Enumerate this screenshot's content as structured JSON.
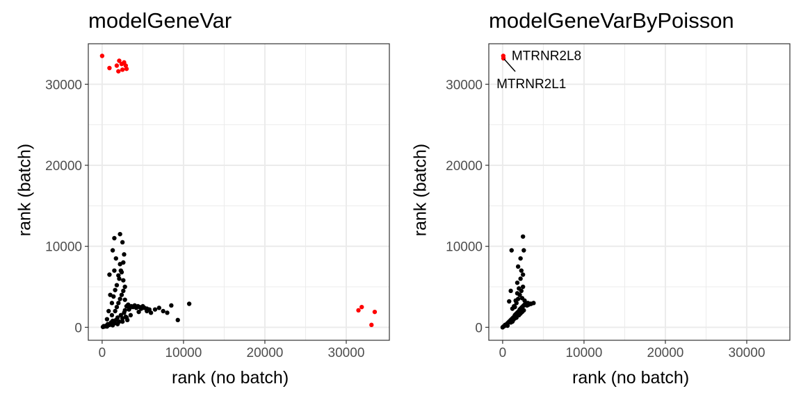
{
  "chart_data": [
    {
      "type": "scatter",
      "title": "modelGeneVar",
      "xlabel": "rank (no batch)",
      "ylabel": "rank (batch)",
      "xlim": [
        -1700,
        35300
      ],
      "ylim": [
        -1600,
        35000
      ],
      "xticks": [
        0,
        10000,
        20000,
        30000
      ],
      "yticks": [
        0,
        10000,
        20000,
        30000
      ],
      "grid": true,
      "series": [
        {
          "color": "#000000",
          "points": [
            [
              100,
              50
            ],
            [
              200,
              150
            ],
            [
              300,
              100
            ],
            [
              500,
              200
            ],
            [
              700,
              400
            ],
            [
              900,
              300
            ],
            [
              1100,
              600
            ],
            [
              1300,
              800
            ],
            [
              1500,
              500
            ],
            [
              1700,
              900
            ],
            [
              1900,
              1200
            ],
            [
              2100,
              700
            ],
            [
              2300,
              1500
            ],
            [
              2500,
              1100
            ],
            [
              2700,
              1800
            ],
            [
              2900,
              1300
            ],
            [
              3100,
              900
            ],
            [
              3300,
              2200
            ],
            [
              1200,
              1500
            ],
            [
              1600,
              2000
            ],
            [
              1800,
              2500
            ],
            [
              2000,
              3000
            ],
            [
              2200,
              3500
            ],
            [
              2400,
              4000
            ],
            [
              2600,
              4500
            ],
            [
              2800,
              5000
            ],
            [
              2100,
              6000
            ],
            [
              2300,
              7000
            ],
            [
              2600,
              8000
            ],
            [
              2700,
              9000
            ],
            [
              1500,
              7000
            ],
            [
              1300,
              9500
            ],
            [
              1700,
              8500
            ],
            [
              1500,
              11000
            ],
            [
              2200,
              11500
            ],
            [
              2500,
              10500
            ],
            [
              1000,
              4000
            ],
            [
              900,
              6500
            ],
            [
              800,
              2000
            ],
            [
              600,
              1000
            ],
            [
              1200,
              3000
            ],
            [
              1400,
              3800
            ],
            [
              1600,
              4600
            ],
            [
              1800,
              5200
            ],
            [
              2000,
              6400
            ],
            [
              2200,
              7800
            ],
            [
              2400,
              6800
            ],
            [
              2600,
              5800
            ],
            [
              2800,
              3400
            ],
            [
              3000,
              2600
            ],
            [
              3200,
              2800
            ],
            [
              3400,
              2400
            ],
            [
              3600,
              2600
            ],
            [
              3800,
              2500
            ],
            [
              4000,
              2700
            ],
            [
              4200,
              2400
            ],
            [
              4400,
              2600
            ],
            [
              4600,
              2500
            ],
            [
              4800,
              2300
            ],
            [
              5000,
              2600
            ],
            [
              5200,
              2400
            ],
            [
              5500,
              2300
            ],
            [
              5800,
              2200
            ],
            [
              6000,
              1800
            ],
            [
              6500,
              2200
            ],
            [
              7000,
              2400
            ],
            [
              7500,
              2000
            ],
            [
              8000,
              1800
            ],
            [
              8500,
              2700
            ],
            [
              9300,
              900
            ],
            [
              10700,
              2900
            ],
            [
              3500,
              1500
            ],
            [
              4500,
              1900
            ],
            [
              5500,
              2000
            ],
            [
              3000,
              1200
            ],
            [
              2500,
              700
            ],
            [
              1900,
              400
            ],
            [
              1300,
              250
            ],
            [
              600,
              100
            ],
            [
              2800,
              2100
            ]
          ]
        },
        {
          "color": "#ff0000",
          "points": [
            [
              0,
              33500
            ],
            [
              900,
              32000
            ],
            [
              1800,
              32300
            ],
            [
              2100,
              32900
            ],
            [
              2400,
              32500
            ],
            [
              2700,
              32700
            ],
            [
              2900,
              32300
            ],
            [
              2500,
              31800
            ],
            [
              2000,
              31600
            ],
            [
              3000,
              31900
            ],
            [
              31500,
              2100
            ],
            [
              31900,
              2500
            ],
            [
              33500,
              1900
            ],
            [
              33100,
              300
            ]
          ]
        }
      ]
    },
    {
      "type": "scatter",
      "title": "modelGeneVarByPoisson",
      "xlabel": "rank (no batch)",
      "ylabel": "rank (batch)",
      "xlim": [
        -1700,
        35300
      ],
      "ylim": [
        -1600,
        35000
      ],
      "xticks": [
        0,
        10000,
        20000,
        30000
      ],
      "yticks": [
        0,
        10000,
        20000,
        30000
      ],
      "grid": true,
      "series": [
        {
          "color": "#000000",
          "points": [
            [
              0,
              0
            ],
            [
              100,
              100
            ],
            [
              200,
              150
            ],
            [
              300,
              300
            ],
            [
              400,
              250
            ],
            [
              500,
              400
            ],
            [
              600,
              500
            ],
            [
              700,
              600
            ],
            [
              800,
              700
            ],
            [
              900,
              800
            ],
            [
              1000,
              900
            ],
            [
              1100,
              1000
            ],
            [
              1200,
              1100
            ],
            [
              1300,
              1200
            ],
            [
              1400,
              1300
            ],
            [
              1500,
              1500
            ],
            [
              1600,
              1600
            ],
            [
              1700,
              1700
            ],
            [
              1800,
              1800
            ],
            [
              1900,
              1900
            ],
            [
              2000,
              2000
            ],
            [
              2100,
              2200
            ],
            [
              2200,
              2300
            ],
            [
              2300,
              2400
            ],
            [
              2400,
              2500
            ],
            [
              2500,
              2600
            ],
            [
              2600,
              2700
            ],
            [
              2700,
              2800
            ],
            [
              2800,
              2900
            ],
            [
              2900,
              2800
            ],
            [
              3000,
              2700
            ],
            [
              3200,
              2800
            ],
            [
              3500,
              2900
            ],
            [
              3800,
              3000
            ],
            [
              1500,
              2500
            ],
            [
              1700,
              3000
            ],
            [
              1900,
              3500
            ],
            [
              2100,
              4000
            ],
            [
              2300,
              4500
            ],
            [
              2500,
              5000
            ],
            [
              1800,
              5500
            ],
            [
              2200,
              6000
            ],
            [
              2500,
              6500
            ],
            [
              2300,
              7000
            ],
            [
              1900,
              7500
            ],
            [
              2200,
              8500
            ],
            [
              2600,
              9500
            ],
            [
              2500,
              11200
            ],
            [
              1100,
              9500
            ],
            [
              1000,
              4500
            ],
            [
              800,
              3200
            ],
            [
              1200,
              2300
            ],
            [
              1400,
              2600
            ],
            [
              1600,
              3300
            ],
            [
              1800,
              4200
            ],
            [
              2000,
              4800
            ],
            [
              2400,
              3600
            ],
            [
              2700,
              3300
            ],
            [
              3100,
              3000
            ],
            [
              3400,
              2900
            ],
            [
              2000,
              1500
            ],
            [
              2200,
              1700
            ],
            [
              2400,
              1900
            ],
            [
              2600,
              2100
            ],
            [
              1000,
              600
            ],
            [
              1200,
              700
            ],
            [
              1300,
              900
            ],
            [
              1500,
              1100
            ],
            [
              1700,
              1200
            ],
            [
              600,
              200
            ]
          ]
        },
        {
          "color": "#ff0000",
          "points": [
            [
              80,
              33500
            ],
            [
              100,
              33200
            ]
          ]
        }
      ],
      "annotations": [
        {
          "text": "MTRNR2L8",
          "x": 80,
          "y": 33500
        },
        {
          "text": "MTRNR2L1",
          "x": 100,
          "y": 33200
        }
      ]
    }
  ]
}
